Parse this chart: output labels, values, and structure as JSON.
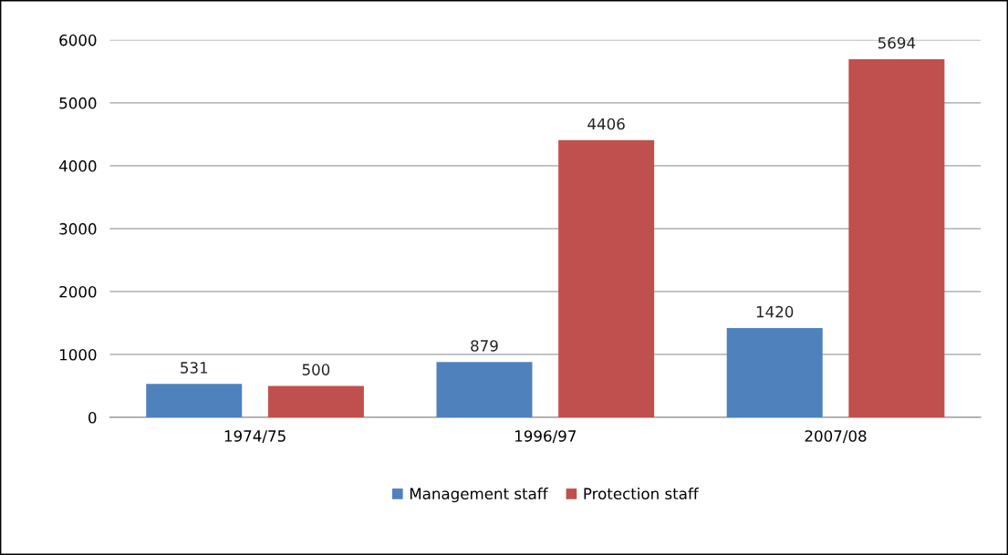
{
  "chart_data": {
    "type": "bar",
    "categories": [
      "1974/75",
      "1996/97",
      "2007/08"
    ],
    "series": [
      {
        "name": "Management staff",
        "color": "#4f81bd",
        "values": [
          531,
          879,
          1420
        ]
      },
      {
        "name": "Protection staff",
        "color": "#c0504d",
        "values": [
          500,
          4406,
          5694
        ]
      }
    ],
    "ylim": [
      0,
      6000
    ],
    "yticks": [
      0,
      1000,
      2000,
      3000,
      4000,
      5000,
      6000
    ],
    "grid": "y",
    "legend": "bottom",
    "data_labels": true
  }
}
